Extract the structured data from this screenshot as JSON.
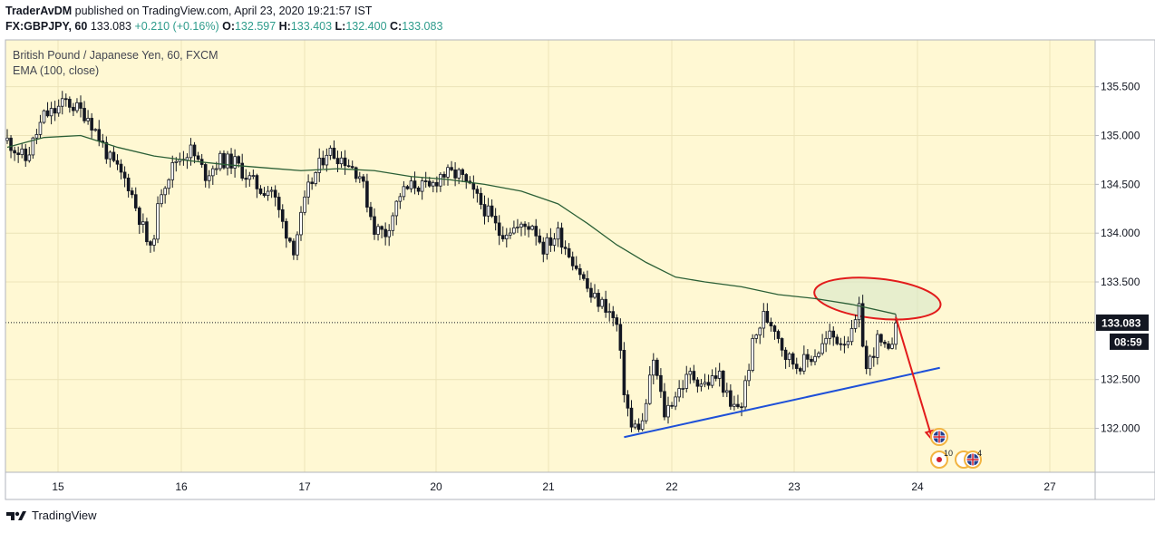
{
  "header": {
    "author": "TraderAvDM",
    "published": "published on TradingView.com, April 23, 2020 19:21:57 IST",
    "symbol": "FX:GBPJPY, 60",
    "last": "133.083",
    "change": "+0.210 (+0.16%)",
    "o_label": "O:",
    "o_value": "132.597",
    "h_label": "H:",
    "h_value": "133.403",
    "l_label": "L:",
    "l_value": "132.400",
    "c_label": "C:",
    "c_value": "133.083"
  },
  "footer": {
    "brand": "TradingView"
  },
  "colors": {
    "background": "#fff8d3",
    "grid": "#ece3b8",
    "candle": "#131722",
    "ema": "#2b5f36",
    "trendline": "#1e50d8",
    "ellipse_stroke": "#e21b1b",
    "ellipse_fill": "#d7e8c9",
    "arrow": "#e21b1b",
    "label_bg": "#131722"
  },
  "chart_data": {
    "type": "candlestick",
    "title": "British Pound / Japanese Yen, 60, FXCM",
    "indicator_label": "EMA (100, close)",
    "x_ticks": [
      "15",
      "16",
      "17",
      "20",
      "21",
      "22",
      "23",
      "24",
      "27"
    ],
    "y_ticks": [
      "135.500",
      "135.000",
      "134.500",
      "134.000",
      "133.500",
      "132.500",
      "132.000"
    ],
    "ylim": [
      131.55,
      135.98
    ],
    "last_price": "133.083",
    "countdown": "08:59",
    "anchors": [
      {
        "x": 0,
        "p": 134.95
      },
      {
        "x": 5,
        "p": 134.75
      },
      {
        "x": 10,
        "p": 135.2
      },
      {
        "x": 13,
        "p": 135.25
      },
      {
        "x": 16,
        "p": 135.35
      },
      {
        "x": 22,
        "p": 135.2
      },
      {
        "x": 28,
        "p": 134.75
      },
      {
        "x": 33,
        "p": 134.5
      },
      {
        "x": 37,
        "p": 134.05
      },
      {
        "x": 39,
        "p": 133.8
      },
      {
        "x": 42,
        "p": 134.45
      },
      {
        "x": 46,
        "p": 134.75
      },
      {
        "x": 50,
        "p": 134.85
      },
      {
        "x": 54,
        "p": 134.6
      },
      {
        "x": 58,
        "p": 134.75
      },
      {
        "x": 62,
        "p": 134.72
      },
      {
        "x": 66,
        "p": 134.55
      },
      {
        "x": 69,
        "p": 134.45
      },
      {
        "x": 72,
        "p": 134.45
      },
      {
        "x": 75,
        "p": 134.1
      },
      {
        "x": 78,
        "p": 133.85
      },
      {
        "x": 82,
        "p": 134.45
      },
      {
        "x": 87,
        "p": 134.85
      },
      {
        "x": 92,
        "p": 134.75
      },
      {
        "x": 96,
        "p": 134.6
      },
      {
        "x": 100,
        "p": 134.05
      },
      {
        "x": 103,
        "p": 134.0
      },
      {
        "x": 107,
        "p": 134.4
      },
      {
        "x": 111,
        "p": 134.5
      },
      {
        "x": 115,
        "p": 134.45
      },
      {
        "x": 118,
        "p": 134.6
      },
      {
        "x": 123,
        "p": 134.6
      },
      {
        "x": 127,
        "p": 134.4
      },
      {
        "x": 131,
        "p": 134.2
      },
      {
        "x": 134,
        "p": 134.0
      },
      {
        "x": 137,
        "p": 134.05
      },
      {
        "x": 140,
        "p": 134.05
      },
      {
        "x": 143,
        "p": 134.1
      },
      {
        "x": 146,
        "p": 133.85
      },
      {
        "x": 150,
        "p": 134.0
      },
      {
        "x": 153,
        "p": 133.8
      },
      {
        "x": 156,
        "p": 133.6
      },
      {
        "x": 159,
        "p": 133.35
      },
      {
        "x": 163,
        "p": 133.25
      },
      {
        "x": 166,
        "p": 133.05
      },
      {
        "x": 168,
        "p": 132.4
      },
      {
        "x": 170,
        "p": 132.0
      },
      {
        "x": 173,
        "p": 132.05
      },
      {
        "x": 176,
        "p": 132.7
      },
      {
        "x": 179,
        "p": 132.15
      },
      {
        "x": 182,
        "p": 132.35
      },
      {
        "x": 186,
        "p": 132.55
      },
      {
        "x": 190,
        "p": 132.45
      },
      {
        "x": 194,
        "p": 132.55
      },
      {
        "x": 197,
        "p": 132.2
      },
      {
        "x": 200,
        "p": 132.25
      },
      {
        "x": 203,
        "p": 132.85
      },
      {
        "x": 206,
        "p": 133.15
      },
      {
        "x": 209,
        "p": 133.05
      },
      {
        "x": 212,
        "p": 132.75
      },
      {
        "x": 215,
        "p": 132.65
      },
      {
        "x": 218,
        "p": 132.7
      },
      {
        "x": 221,
        "p": 132.8
      },
      {
        "x": 224,
        "p": 132.95
      },
      {
        "x": 227,
        "p": 132.9
      },
      {
        "x": 230,
        "p": 132.95
      },
      {
        "x": 232,
        "p": 133.2
      },
      {
        "x": 234,
        "p": 132.6
      },
      {
        "x": 237,
        "p": 132.9
      },
      {
        "x": 240,
        "p": 132.75
      },
      {
        "x": 242,
        "p": 133.08
      }
    ],
    "ema_points": [
      {
        "x": 0,
        "p": 134.88
      },
      {
        "x": 10,
        "p": 134.98
      },
      {
        "x": 20,
        "p": 135.0
      },
      {
        "x": 30,
        "p": 134.88
      },
      {
        "x": 40,
        "p": 134.79
      },
      {
        "x": 50,
        "p": 134.74
      },
      {
        "x": 60,
        "p": 134.7
      },
      {
        "x": 70,
        "p": 134.67
      },
      {
        "x": 80,
        "p": 134.64
      },
      {
        "x": 90,
        "p": 134.66
      },
      {
        "x": 100,
        "p": 134.64
      },
      {
        "x": 110,
        "p": 134.58
      },
      {
        "x": 120,
        "p": 134.55
      },
      {
        "x": 130,
        "p": 134.5
      },
      {
        "x": 140,
        "p": 134.43
      },
      {
        "x": 150,
        "p": 134.3
      },
      {
        "x": 158,
        "p": 134.1
      },
      {
        "x": 166,
        "p": 133.88
      },
      {
        "x": 174,
        "p": 133.7
      },
      {
        "x": 182,
        "p": 133.55
      },
      {
        "x": 190,
        "p": 133.5
      },
      {
        "x": 200,
        "p": 133.45
      },
      {
        "x": 210,
        "p": 133.37
      },
      {
        "x": 220,
        "p": 133.33
      },
      {
        "x": 230,
        "p": 133.27
      },
      {
        "x": 242,
        "p": 133.17
      }
    ],
    "trendline": [
      {
        "x": 168,
        "p": 131.91
      },
      {
        "x": 254,
        "p": 132.62
      }
    ],
    "drawing_arrow": [
      {
        "x": 242,
        "p": 133.14
      },
      {
        "x": 252,
        "p": 131.88
      }
    ],
    "ellipse_center": {
      "x": 237,
      "p": 133.33
    },
    "events": [
      {
        "flag": "UK",
        "count": ""
      },
      {
        "flag": "none",
        "count": "10"
      },
      {
        "flag": "UK",
        "count": "4"
      }
    ]
  }
}
